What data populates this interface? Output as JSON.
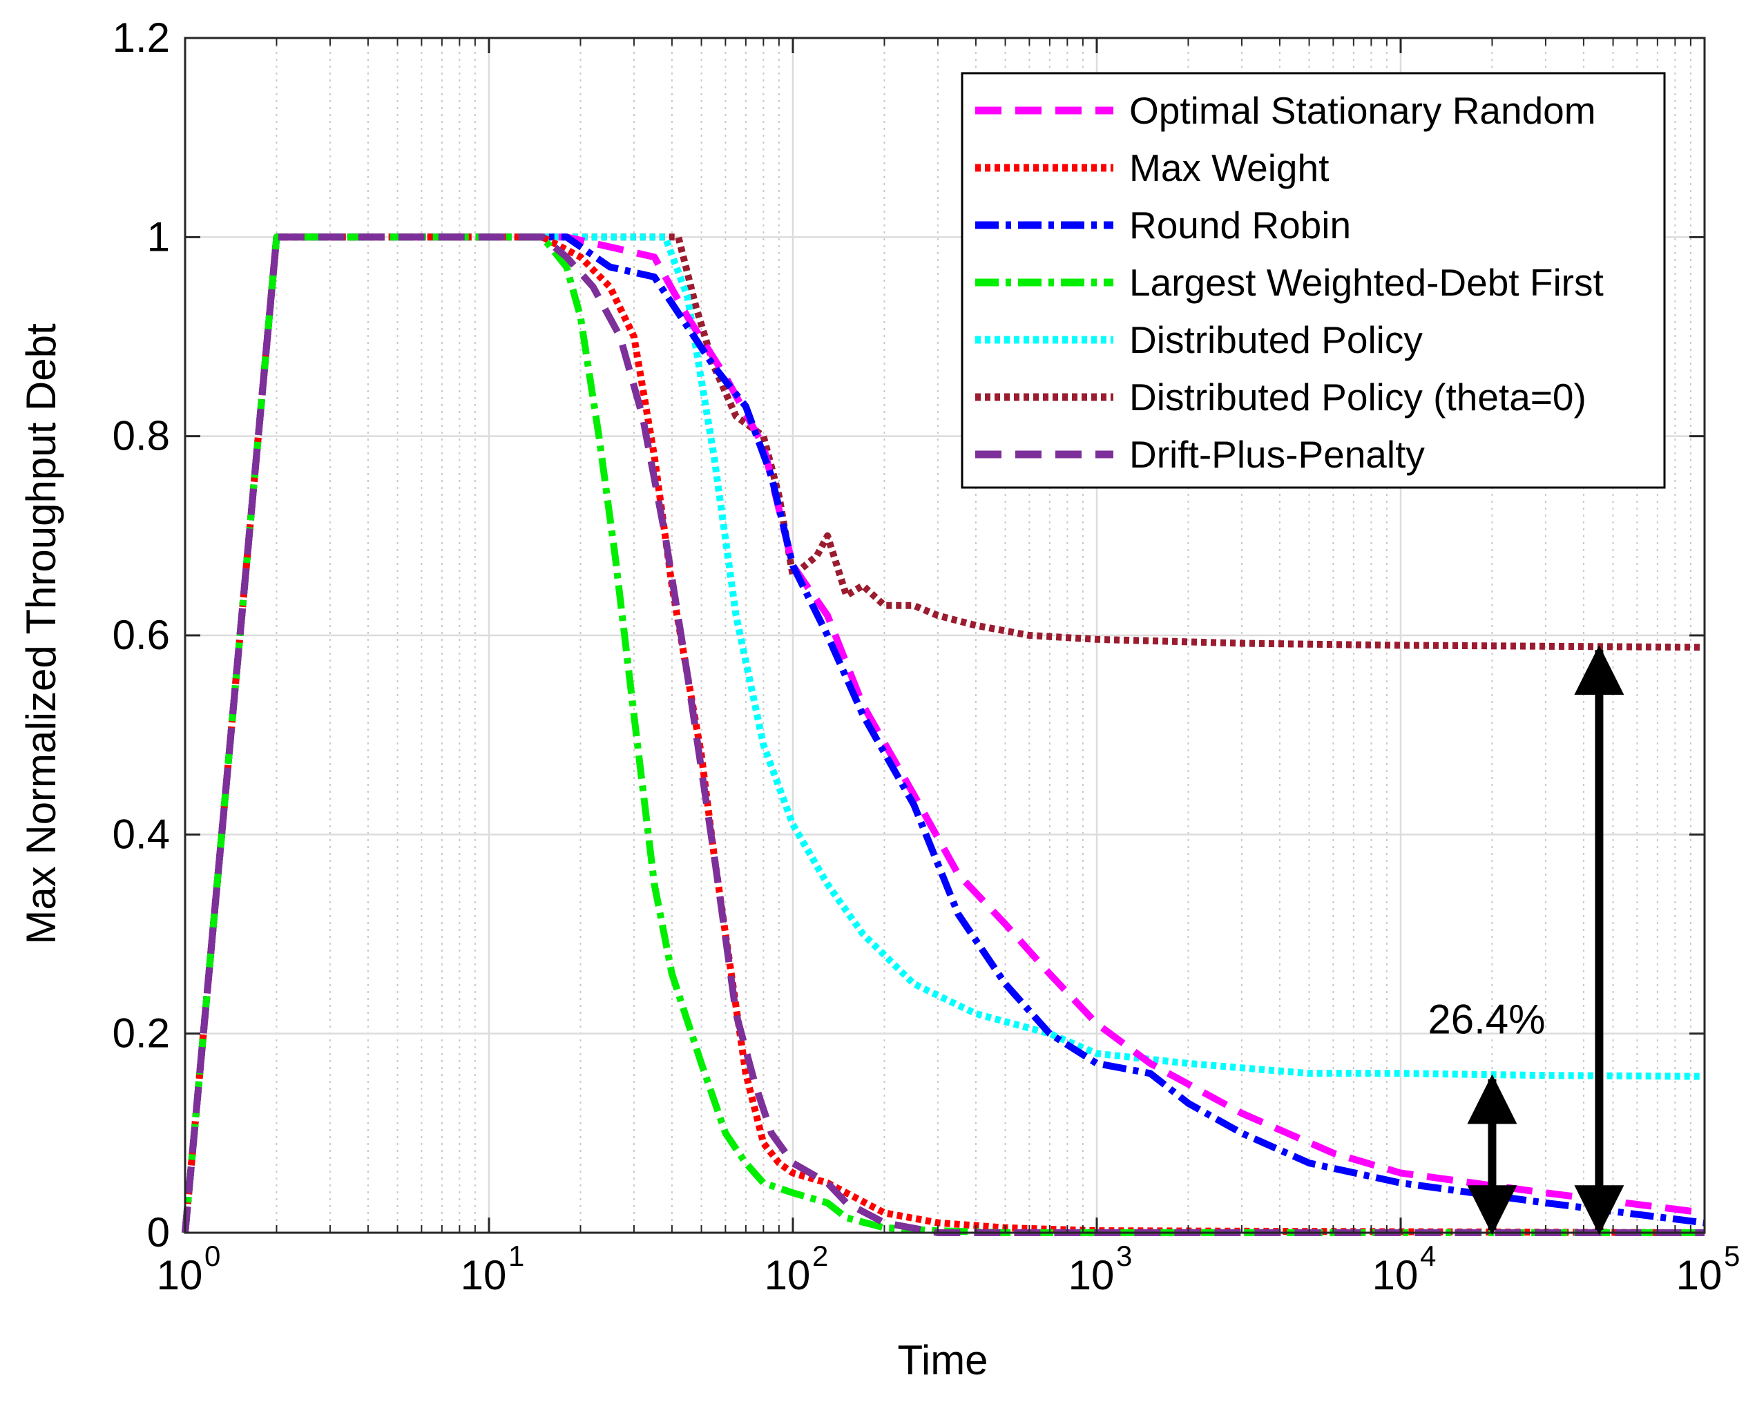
{
  "chart_data": {
    "type": "line",
    "xscale": "log",
    "xlabel": "Time",
    "ylabel": "Max Normalized Throughput Debt",
    "xlim": [
      1,
      100000
    ],
    "ylim": [
      0,
      1.2
    ],
    "yticks": [
      0,
      0.2,
      0.4,
      0.6,
      0.8,
      1,
      1.2
    ],
    "ytick_labels": [
      "0",
      "0.2",
      "0.4",
      "0.6",
      "0.8",
      "1",
      "1.2"
    ],
    "xticks": [
      1,
      10,
      100,
      1000,
      10000,
      100000
    ],
    "xtick_labels": [
      {
        "base": "10",
        "exp": "0"
      },
      {
        "base": "10",
        "exp": "1"
      },
      {
        "base": "10",
        "exp": "2"
      },
      {
        "base": "10",
        "exp": "3"
      },
      {
        "base": "10",
        "exp": "4"
      },
      {
        "base": "10",
        "exp": "5"
      }
    ],
    "grid": true,
    "legend_position": "top-right",
    "series": [
      {
        "name": "Optimal Stationary Random",
        "color": "#ff00ff",
        "style": "dashed",
        "x": [
          1,
          2,
          18,
          35,
          45,
          60,
          80,
          100,
          130,
          170,
          250,
          350,
          500,
          700,
          1000,
          1500,
          3000,
          6000,
          10000,
          30000,
          100000
        ],
        "y": [
          0,
          1,
          1,
          0.98,
          0.92,
          0.86,
          0.79,
          0.67,
          0.62,
          0.53,
          0.44,
          0.36,
          0.31,
          0.26,
          0.21,
          0.17,
          0.12,
          0.08,
          0.06,
          0.04,
          0.02
        ]
      },
      {
        "name": "Max Weight",
        "color": "#ff0000",
        "style": "dotted",
        "x": [
          1,
          2,
          15,
          20,
          25,
          30,
          35,
          40,
          45,
          50,
          55,
          60,
          70,
          80,
          90,
          100,
          130,
          150,
          200,
          300,
          500,
          1000,
          100000
        ],
        "y": [
          0,
          1,
          1,
          0.98,
          0.95,
          0.9,
          0.78,
          0.65,
          0.56,
          0.48,
          0.38,
          0.3,
          0.16,
          0.09,
          0.07,
          0.06,
          0.05,
          0.04,
          0.02,
          0.01,
          0.005,
          0.002,
          0
        ]
      },
      {
        "name": "Round Robin",
        "color": "#0000ff",
        "style": "dash-dot",
        "x": [
          1,
          2,
          18,
          25,
          35,
          45,
          55,
          70,
          85,
          100,
          130,
          170,
          250,
          350,
          500,
          700,
          1000,
          1500,
          2000,
          3000,
          5000,
          10000,
          30000,
          100000
        ],
        "y": [
          0,
          1,
          1,
          0.97,
          0.96,
          0.91,
          0.87,
          0.83,
          0.76,
          0.67,
          0.6,
          0.52,
          0.43,
          0.32,
          0.25,
          0.2,
          0.17,
          0.16,
          0.13,
          0.1,
          0.07,
          0.05,
          0.03,
          0.01
        ]
      },
      {
        "name": "Largest Weighted-Debt First",
        "color": "#00ee00",
        "style": "dash-dot",
        "x": [
          1,
          2,
          15,
          18,
          20,
          23,
          26,
          30,
          35,
          40,
          50,
          60,
          70,
          80,
          100,
          130,
          150,
          200,
          300,
          500,
          100000
        ],
        "y": [
          0,
          1,
          1,
          0.97,
          0.92,
          0.8,
          0.68,
          0.52,
          0.35,
          0.26,
          0.17,
          0.1,
          0.07,
          0.05,
          0.04,
          0.03,
          0.015,
          0.005,
          0.002,
          0,
          0
        ]
      },
      {
        "name": "Distributed Policy",
        "color": "#00ffff",
        "style": "dotted",
        "x": [
          1,
          2,
          38,
          45,
          55,
          65,
          80,
          100,
          130,
          170,
          250,
          400,
          700,
          1000,
          2000,
          5000,
          10000,
          30000,
          100000
        ],
        "y": [
          0,
          1,
          1,
          0.94,
          0.78,
          0.62,
          0.49,
          0.41,
          0.35,
          0.3,
          0.25,
          0.22,
          0.2,
          0.18,
          0.17,
          0.16,
          0.16,
          0.158,
          0.157
        ]
      },
      {
        "name": "Distributed Policy (theta=0)",
        "color": "#9b1b2f",
        "style": "dotted",
        "x": [
          1,
          2,
          42,
          48,
          55,
          65,
          80,
          90,
          100,
          120,
          130,
          150,
          170,
          200,
          250,
          300,
          400,
          600,
          1000,
          3000,
          10000,
          100000
        ],
        "y": [
          0,
          1,
          1,
          0.93,
          0.87,
          0.82,
          0.8,
          0.74,
          0.66,
          0.68,
          0.7,
          0.64,
          0.65,
          0.63,
          0.63,
          0.62,
          0.61,
          0.6,
          0.596,
          0.592,
          0.59,
          0.588
        ]
      },
      {
        "name": "Drift-Plus-Penalty",
        "color": "#7d2f9a",
        "style": "dashed",
        "x": [
          1,
          2,
          15,
          18,
          22,
          27,
          32,
          38,
          45,
          55,
          65,
          75,
          85,
          100,
          130,
          150,
          200,
          300,
          100000
        ],
        "y": [
          0,
          1,
          1,
          0.98,
          0.95,
          0.9,
          0.82,
          0.7,
          0.56,
          0.38,
          0.22,
          0.15,
          0.1,
          0.07,
          0.05,
          0.03,
          0.01,
          0,
          0
        ]
      }
    ],
    "annotations": [
      {
        "text": "26.4%",
        "arrow_x": 20000,
        "from_y": 0,
        "to_y": 0.157
      },
      {
        "arrow_x": 45000,
        "from_y": 0,
        "to_y": 0.588
      }
    ]
  }
}
